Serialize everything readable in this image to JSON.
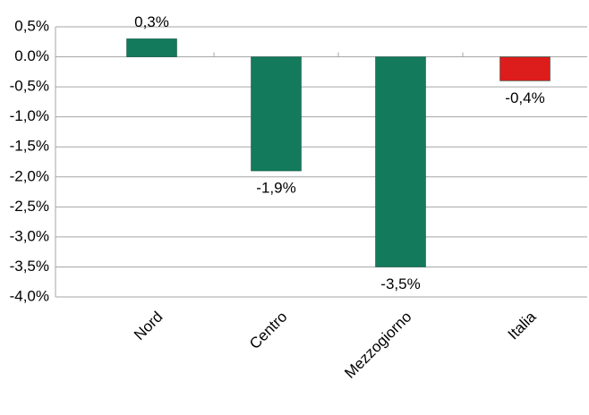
{
  "chart_data": {
    "type": "bar",
    "categories": [
      "Nord",
      "Centro",
      "Mezzogiorno",
      "Italia"
    ],
    "values": [
      0.3,
      -1.9,
      -3.5,
      -0.4
    ],
    "value_labels": [
      "0,3%",
      "-1,9%",
      "-3,5%",
      "-0,4%"
    ],
    "colors": [
      "#137a5c",
      "#137a5c",
      "#137a5c",
      "#dd1c1c"
    ],
    "ylim": [
      -4,
      0.5
    ],
    "yticks": [
      {
        "value": 0.5,
        "label": "0,5%"
      },
      {
        "value": 0,
        "label": "0.0%"
      },
      {
        "value": -0.5,
        "label": "-0,5%"
      },
      {
        "value": -1,
        "label": "-1,0%"
      },
      {
        "value": -1.5,
        "label": "-1,5%"
      },
      {
        "value": -2,
        "label": "-2,0%"
      },
      {
        "value": -2.5,
        "label": "-2,5%"
      },
      {
        "value": -3,
        "label": "-3,0%"
      },
      {
        "value": -3.5,
        "label": "-3,5%"
      },
      {
        "value": -4,
        "label": "-4,0%"
      }
    ],
    "grid": true
  }
}
